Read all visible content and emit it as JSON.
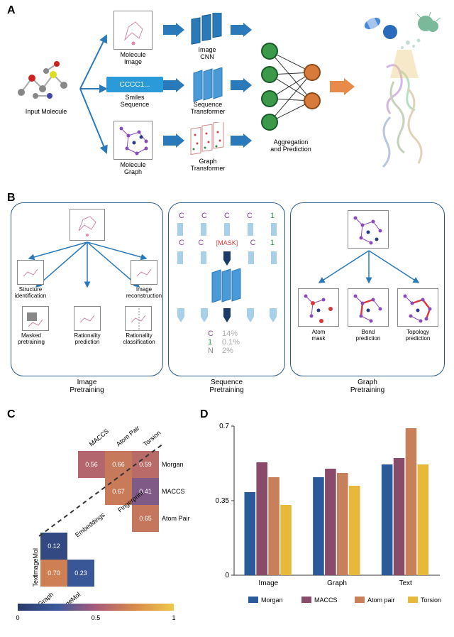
{
  "panelA": {
    "label": "A",
    "input_molecule": "Input Molecule",
    "molecule_image": "Molecule\nImage",
    "smiles_seq": "Smiles\nSequence",
    "molecule_graph": "Molecule\nGraph",
    "image_cnn": "Image\nCNN",
    "seq_transformer": "Sequence\nTransformer",
    "graph_transformer": "Graph\nTransformer",
    "aggregation": "Aggregation\nand Prediction",
    "smiles_text": "CCCC1..."
  },
  "panelB": {
    "label": "B",
    "image_pretraining": "Image\nPretraining",
    "sequence_pretraining": "Sequence\nPretraining",
    "graph_pretraining": "Graph\nPretraining",
    "struct_id": "Structure\nidentification",
    "img_recon": "Image\nreconstruction",
    "masked_pre": "Masked\npretraining",
    "rat_pred": "Rationality\nprediction",
    "rat_class": "Rationality\nclassification",
    "mask_token": "[MASK]",
    "seq_top": [
      "C",
      "C",
      "C",
      "C",
      "1"
    ],
    "seq_mid": [
      "C",
      "C",
      "",
      "C",
      "1"
    ],
    "seq_out": [
      {
        "t": "C",
        "p": "14%",
        "c": "#8a4a9a"
      },
      {
        "t": "1",
        "p": "0.1%",
        "c": "#2a9a4a"
      },
      {
        "t": "N",
        "p": "2%",
        "c": "#888"
      }
    ],
    "atom_mask": "Atom\nmask",
    "bond_pred": "Bond\nprediction",
    "topo_pred": "Topology\nprediction"
  },
  "panelC": {
    "label": "C",
    "row_labels_top": [
      "Morgan",
      "MACCS",
      "Atom Pair"
    ],
    "col_labels_top": [
      "MACCS",
      "Atom Pair",
      "Torsion"
    ],
    "row_labels_bot": [
      "ImageMol",
      "Text"
    ],
    "col_labels_bot": [
      "Graph",
      "ImageMol"
    ],
    "fp_label": "Fingerprint",
    "emb_label": "Embeddings",
    "heatmap_top": [
      [
        0.56,
        0.66,
        0.59
      ],
      [
        null,
        0.67,
        0.41
      ],
      [
        null,
        null,
        0.65
      ]
    ],
    "heatmap_bot": [
      [
        0.12,
        null
      ],
      [
        0.7,
        0.23
      ]
    ],
    "colormap": {
      "stops": [
        {
          "v": 0,
          "c": "#2a3a6a"
        },
        {
          "v": 0.25,
          "c": "#3a5a9a"
        },
        {
          "v": 0.5,
          "c": "#a85a7a"
        },
        {
          "v": 0.75,
          "c": "#d88a4a"
        },
        {
          "v": 1,
          "c": "#f0c84a"
        }
      ]
    },
    "colorbar_ticks": [
      "0",
      "0.5",
      "1"
    ]
  },
  "panelD": {
    "label": "D",
    "categories": [
      "Image",
      "Graph",
      "Text"
    ],
    "series": [
      {
        "name": "Morgan",
        "color": "#2a5a9a",
        "values": [
          0.39,
          0.46,
          0.52
        ]
      },
      {
        "name": "MACCS",
        "color": "#8a4a6a",
        "values": [
          0.53,
          0.5,
          0.55
        ]
      },
      {
        "name": "Atom pair",
        "color": "#c8805a",
        "values": [
          0.46,
          0.48,
          0.69
        ]
      },
      {
        "name": "Torsion",
        "color": "#e8b83a",
        "values": [
          0.33,
          0.42,
          0.52
        ]
      }
    ],
    "ylim": [
      0,
      0.7
    ],
    "yticks": [
      0,
      0.35,
      0.7
    ]
  }
}
